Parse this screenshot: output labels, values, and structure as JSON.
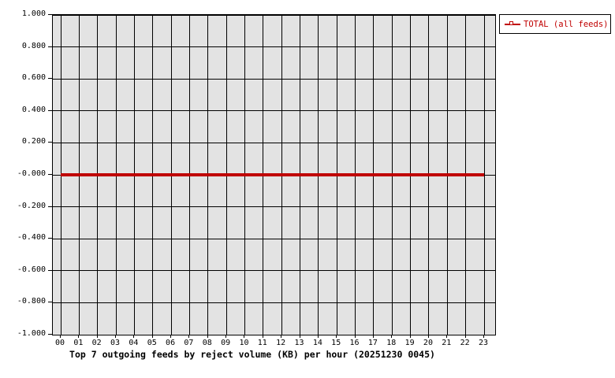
{
  "title": {
    "text": "Top 7 outgoing feeds by reject volume (KB) per hour (20251230 0045)"
  },
  "legend": {
    "entries": [
      {
        "label": "TOTAL (all feeds)",
        "color": "#c00000",
        "marker": "open-square-on-line"
      }
    ],
    "position": "top-right-outside"
  },
  "colors": {
    "series_red": "#c00000",
    "plot_background": "#e3e3e3",
    "grid": "#000000",
    "text": "#000000",
    "legend_background": "#ffffff",
    "page_background": "#ffffff"
  },
  "chart_data": {
    "type": "line",
    "title": "Top 7 outgoing feeds by reject volume (KB) per hour (20251230 0045)",
    "xlabel": "",
    "ylabel": "",
    "grid": true,
    "legend_position": "top-right-outside",
    "ylim": [
      -1.0,
      1.0
    ],
    "y_tick_labels": [
      "1.000",
      "0.800",
      "0.600",
      "0.400",
      "0.200",
      "-0.000",
      "-0.200",
      "-0.400",
      "-0.600",
      "-0.800",
      "-1.000"
    ],
    "y_tick_values": [
      1.0,
      0.8,
      0.6,
      0.4,
      0.2,
      0.0,
      -0.2,
      -0.4,
      -0.6,
      -0.8,
      -1.0
    ],
    "x_tick_labels": [
      "00",
      "01",
      "02",
      "03",
      "04",
      "05",
      "06",
      "07",
      "08",
      "09",
      "10",
      "11",
      "12",
      "13",
      "14",
      "15",
      "16",
      "17",
      "18",
      "19",
      "20",
      "21",
      "22",
      "23"
    ],
    "series": [
      {
        "name": "TOTAL (all feeds)",
        "color": "#c00000",
        "x": [
          0,
          1,
          2,
          3,
          4,
          5,
          6,
          7,
          8,
          9,
          10,
          11,
          12,
          13,
          14,
          15,
          16,
          17,
          18,
          19,
          20,
          21,
          22,
          23
        ],
        "values": [
          0,
          0,
          0,
          0,
          0,
          0,
          0,
          0,
          0,
          0,
          0,
          0,
          0,
          0,
          0,
          0,
          0,
          0,
          0,
          0,
          0,
          0,
          0,
          0
        ]
      }
    ]
  }
}
